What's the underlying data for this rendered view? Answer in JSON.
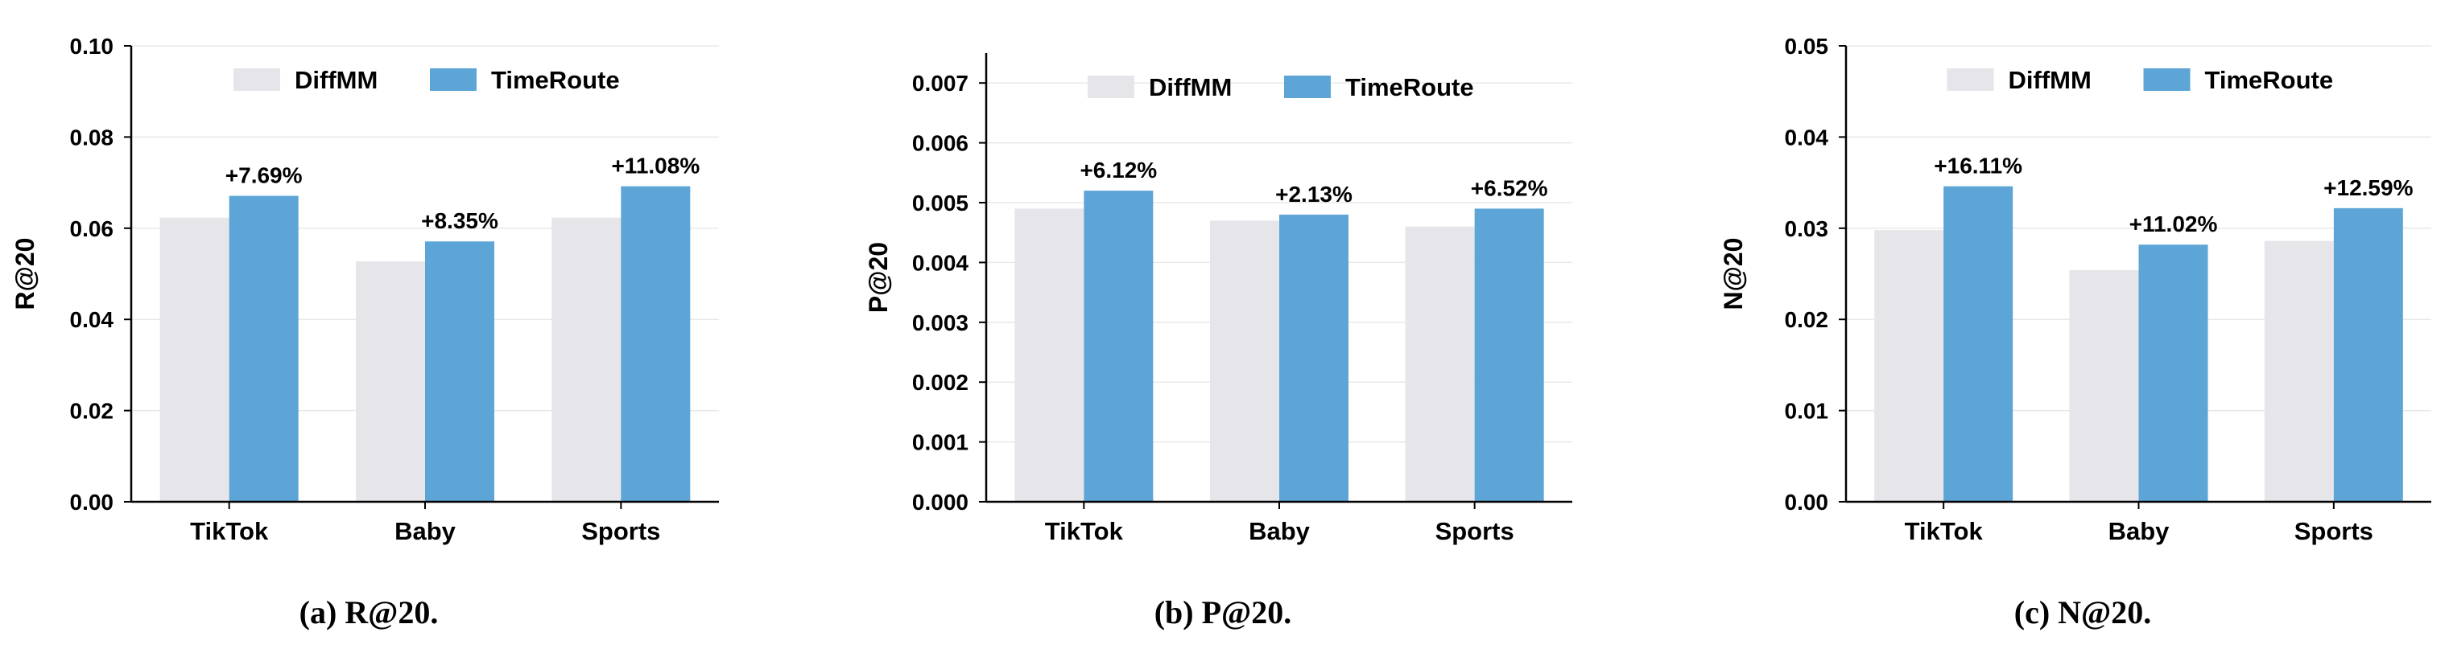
{
  "colors": {
    "diffmm": "#e6e6ea",
    "timeroute": "#5ca5d6",
    "axis": "#000000",
    "grid": "#e8e8e8",
    "text": "#000000"
  },
  "chart_data": [
    {
      "type": "bar",
      "caption": "(a) R@20.",
      "ylabel": "R@20",
      "categories": [
        "TikTok",
        "Baby",
        "Sports"
      ],
      "series": [
        {
          "name": "DiffMM",
          "values": [
            0.0623,
            0.0527,
            0.0623
          ]
        },
        {
          "name": "TimeRoute",
          "values": [
            0.0671,
            0.0571,
            0.0692
          ]
        }
      ],
      "annotations": [
        "+7.69%",
        "+8.35%",
        "+11.08%"
      ],
      "ylim": [
        0,
        0.1
      ],
      "yticks": [
        0.0,
        0.02,
        0.04,
        0.06,
        0.08,
        0.1
      ],
      "ytick_labels": [
        "0.00",
        "0.02",
        "0.04",
        "0.06",
        "0.08",
        "0.10"
      ],
      "grid": true,
      "legend": "top-center"
    },
    {
      "type": "bar",
      "caption": "(b) P@20.",
      "ylabel": "P@20",
      "categories": [
        "TikTok",
        "Baby",
        "Sports"
      ],
      "series": [
        {
          "name": "DiffMM",
          "values": [
            0.0049,
            0.0047,
            0.0046
          ]
        },
        {
          "name": "TimeRoute",
          "values": [
            0.0052,
            0.0048,
            0.0049
          ]
        }
      ],
      "annotations": [
        "+6.12%",
        "+2.13%",
        "+6.52%"
      ],
      "ylim": [
        0,
        0.0075
      ],
      "yticks": [
        0.0,
        0.001,
        0.002,
        0.003,
        0.004,
        0.005,
        0.006,
        0.007
      ],
      "ytick_labels": [
        "0.000",
        "0.001",
        "0.002",
        "0.003",
        "0.004",
        "0.005",
        "0.006",
        "0.007"
      ],
      "grid": true,
      "legend": "top-center"
    },
    {
      "type": "bar",
      "caption": "(c) N@20.",
      "ylabel": "N@20",
      "categories": [
        "TikTok",
        "Baby",
        "Sports"
      ],
      "series": [
        {
          "name": "DiffMM",
          "values": [
            0.0298,
            0.0254,
            0.0286
          ]
        },
        {
          "name": "TimeRoute",
          "values": [
            0.0346,
            0.0282,
            0.0322
          ]
        }
      ],
      "annotations": [
        "+16.11%",
        "+11.02%",
        "+12.59%"
      ],
      "ylim": [
        0,
        0.05
      ],
      "yticks": [
        0.0,
        0.01,
        0.02,
        0.03,
        0.04,
        0.05
      ],
      "ytick_labels": [
        "0.00",
        "0.01",
        "0.02",
        "0.03",
        "0.04",
        "0.05"
      ],
      "grid": true,
      "legend": "top-center"
    }
  ]
}
